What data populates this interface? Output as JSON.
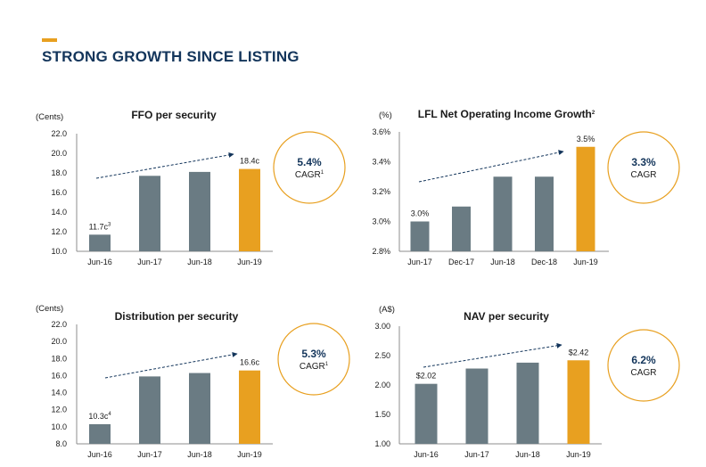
{
  "page": {
    "title": "STRONG GROWTH SINCE LISTING"
  },
  "colors": {
    "accent": "#E8A020",
    "bar": "#6A7B83",
    "highlight": "#E8A020",
    "title": "#13355B",
    "circle": "#E8A020"
  },
  "chart_data": [
    {
      "type": "bar",
      "title": "FFO per security",
      "title_sup": "",
      "unit": "(Cents)",
      "categories": [
        "Jun-16",
        "Jun-17",
        "Jun-18",
        "Jun-19"
      ],
      "values": [
        11.7,
        17.7,
        18.1,
        18.4
      ],
      "data_labels": [
        {
          "index": 0,
          "text": "11.7c",
          "sup": "3"
        },
        {
          "index": 3,
          "text": "18.4c",
          "sup": ""
        }
      ],
      "highlight_index": 3,
      "ylim": [
        10.0,
        22.0
      ],
      "yticks": [
        "10.0",
        "12.0",
        "14.0",
        "16.0",
        "18.0",
        "20.0",
        "22.0"
      ],
      "trend_arrow": true,
      "cagr": {
        "value": "5.4%",
        "label": "CAGR",
        "sup": "1"
      }
    },
    {
      "type": "bar",
      "title": "LFL Net Operating Income Growth",
      "title_sup": "2",
      "unit": "(%)",
      "categories": [
        "Jun-17",
        "Dec-17",
        "Jun-18",
        "Dec-18",
        "Jun-19"
      ],
      "values": [
        3.0,
        3.1,
        3.3,
        3.3,
        3.5
      ],
      "data_labels": [
        {
          "index": 0,
          "text": "3.0%",
          "sup": ""
        },
        {
          "index": 4,
          "text": "3.5%",
          "sup": ""
        }
      ],
      "highlight_index": 4,
      "ylim": [
        2.8,
        3.6
      ],
      "yticks": [
        "2.8%",
        "3.0%",
        "3.2%",
        "3.4%",
        "3.6%"
      ],
      "trend_arrow": true,
      "cagr": {
        "value": "3.3%",
        "label": "CAGR",
        "sup": ""
      }
    },
    {
      "type": "bar",
      "title": "Distribution per security",
      "title_sup": "",
      "unit": "(Cents)",
      "categories": [
        "Jun-16",
        "Jun-17",
        "Jun-18",
        "Jun-19"
      ],
      "values": [
        10.3,
        15.9,
        16.3,
        16.6
      ],
      "data_labels": [
        {
          "index": 0,
          "text": "10.3c",
          "sup": "4"
        },
        {
          "index": 3,
          "text": "16.6c",
          "sup": ""
        }
      ],
      "highlight_index": 3,
      "ylim": [
        8.0,
        22.0
      ],
      "yticks": [
        "8.0",
        "10.0",
        "12.0",
        "14.0",
        "16.0",
        "18.0",
        "20.0",
        "22.0"
      ],
      "trend_arrow": true,
      "cagr": {
        "value": "5.3%",
        "label": "CAGR",
        "sup": "1"
      }
    },
    {
      "type": "bar",
      "title": "NAV per security",
      "title_sup": "",
      "unit": "(A$)",
      "categories": [
        "Jun-16",
        "Jun-17",
        "Jun-18",
        "Jun-19"
      ],
      "values": [
        2.02,
        2.28,
        2.38,
        2.42
      ],
      "data_labels": [
        {
          "index": 0,
          "text": "$2.02",
          "sup": ""
        },
        {
          "index": 3,
          "text": "$2.42",
          "sup": ""
        }
      ],
      "highlight_index": 3,
      "ylim": [
        1.0,
        3.0
      ],
      "yticks": [
        "1.00",
        "1.50",
        "2.00",
        "2.50",
        "3.00"
      ],
      "trend_arrow": true,
      "cagr": {
        "value": "6.2%",
        "label": "CAGR",
        "sup": ""
      }
    }
  ]
}
